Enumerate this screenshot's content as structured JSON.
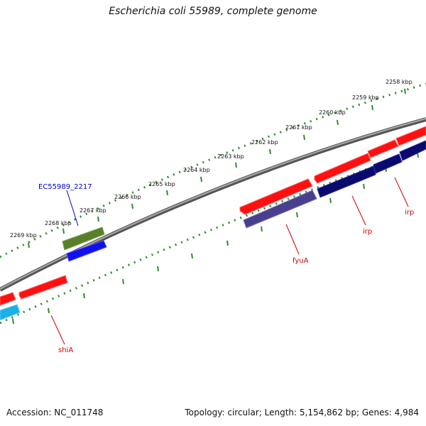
{
  "title": "Escherichia coli 55989, complete genome",
  "footer": {
    "accession": "Accession: NC_011748",
    "topology": "Topology: circular; Length: 5,154,862 bp; Genes: 4,984"
  },
  "ruler": {
    "labels": [
      "2258 kbp",
      "2259 kbp",
      "2260 kbp",
      "2261 kbp",
      "2262 kbp",
      "2263 kbp",
      "2264 kbp",
      "2265 kbp",
      "2266 kbp",
      "2267 kbp",
      "2268 kbp",
      "2269 kbp"
    ]
  },
  "gene_labels": {
    "ec55989_2217": "EC55989_2217",
    "shiA": "shiA",
    "fyuA": "fyuA",
    "irp_1": "irp",
    "irp_2": "irp"
  },
  "colors": {
    "backbone": "#888888",
    "ruler": "#2e8b2e",
    "cds_red": "#ff1010",
    "cds_navy": "#0a0a6e",
    "cds_purple": "#4a3f8f",
    "cds_olive": "#5a7f2a",
    "cds_blue": "#1010ee",
    "cds_cyan": "#1ab0e8",
    "label_red": "#cc0000",
    "label_blue": "#0000cc"
  }
}
